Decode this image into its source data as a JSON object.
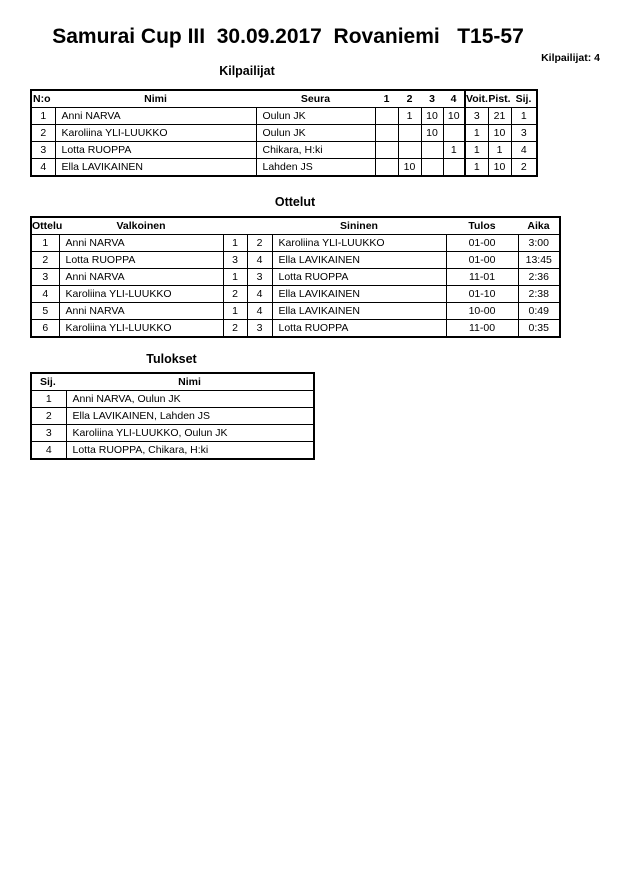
{
  "page": {
    "title": "Samurai Cup III  30.09.2017  Rovaniemi   T15-57",
    "competitors_count": "Kilpailijat: 4"
  },
  "colors": {
    "text": "#000000",
    "border": "#000000",
    "background": "#ffffff"
  },
  "competitors": {
    "section_title": "Kilpailijat",
    "headers": [
      "N:o",
      "Nimi",
      "Seura",
      "1",
      "2",
      "3",
      "4",
      "Voit.",
      "Pist.",
      "Sij."
    ],
    "rows": [
      [
        "1",
        "Anni NARVA",
        "Oulun JK",
        "",
        "1",
        "10",
        "10",
        "3",
        "21",
        "1"
      ],
      [
        "2",
        "Karoliina YLI-LUUKKO",
        "Oulun JK",
        "",
        "",
        "10",
        "",
        "1",
        "10",
        "3"
      ],
      [
        "3",
        "Lotta RUOPPA",
        "Chikara, H:ki",
        "",
        "",
        "",
        "1",
        "1",
        "1",
        "4"
      ],
      [
        "4",
        "Ella LAVIKAINEN",
        "Lahden JS",
        "",
        "10",
        "",
        "",
        "1",
        "10",
        "2"
      ]
    ]
  },
  "matches": {
    "section_title": "Ottelut",
    "headers": [
      "Ottelu",
      "Valkoinen",
      "",
      "",
      "Sininen",
      "Tulos",
      "Aika"
    ],
    "rows": [
      [
        "1",
        "Anni NARVA",
        "1",
        "2",
        "Karoliina YLI-LUUKKO",
        "01-00",
        "3:00"
      ],
      [
        "2",
        "Lotta RUOPPA",
        "3",
        "4",
        "Ella LAVIKAINEN",
        "01-00",
        "13:45"
      ],
      [
        "3",
        "Anni NARVA",
        "1",
        "3",
        "Lotta RUOPPA",
        "11-01",
        "2:36"
      ],
      [
        "4",
        "Karoliina YLI-LUUKKO",
        "2",
        "4",
        "Ella LAVIKAINEN",
        "01-10",
        "2:38"
      ],
      [
        "5",
        "Anni NARVA",
        "1",
        "4",
        "Ella LAVIKAINEN",
        "10-00",
        "0:49"
      ],
      [
        "6",
        "Karoliina YLI-LUUKKO",
        "2",
        "3",
        "Lotta RUOPPA",
        "11-00",
        "0:35"
      ]
    ]
  },
  "results": {
    "section_title": "Tulokset",
    "headers": [
      "Sij.",
      "Nimi"
    ],
    "rows": [
      [
        "1",
        "Anni NARVA, Oulun JK"
      ],
      [
        "2",
        "Ella LAVIKAINEN, Lahden JS"
      ],
      [
        "3",
        "Karoliina YLI-LUUKKO, Oulun JK"
      ],
      [
        "4",
        "Lotta RUOPPA, Chikara, H:ki"
      ]
    ]
  }
}
